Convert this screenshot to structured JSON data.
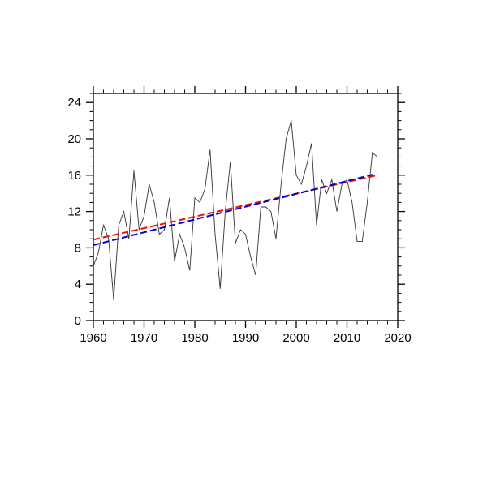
{
  "page": {
    "background": "#ffffff"
  },
  "chart_data": {
    "type": "line",
    "title": "",
    "xlabel": "",
    "ylabel": "",
    "xlim": [
      1960,
      2020
    ],
    "ylim": [
      0,
      25
    ],
    "grid": false,
    "legend": "none",
    "xticks_major": [
      1960,
      1970,
      1980,
      1990,
      2000,
      2010,
      2020
    ],
    "xtick_labels": [
      "1960",
      "1970",
      "1980",
      "1990",
      "2000",
      "2010",
      "2020"
    ],
    "yticks_major": [
      0,
      4,
      8,
      12,
      16,
      20,
      24
    ],
    "ytick_labels": [
      "0",
      "4",
      "8",
      "12",
      "16",
      "20",
      "24"
    ],
    "xtick_minor_step": 2,
    "ytick_minor_step": 1,
    "x": [
      1960,
      1961,
      1962,
      1963,
      1964,
      1965,
      1966,
      1967,
      1968,
      1969,
      1970,
      1971,
      1972,
      1973,
      1974,
      1975,
      1976,
      1977,
      1978,
      1979,
      1980,
      1981,
      1982,
      1983,
      1984,
      1985,
      1986,
      1987,
      1988,
      1989,
      1990,
      1991,
      1992,
      1993,
      1994,
      1995,
      1996,
      1997,
      1998,
      1999,
      2000,
      2001,
      2002,
      2003,
      2004,
      2005,
      2006,
      2007,
      2008,
      2009,
      2010,
      2011,
      2012,
      2013,
      2014,
      2015,
      2016
    ],
    "series": [
      {
        "name": "annual-values",
        "color": "#333333",
        "style": "solid",
        "width": 0.9,
        "values": [
          6.0,
          7.5,
          10.5,
          9.0,
          2.3,
          10.5,
          12.0,
          9.0,
          16.5,
          10.0,
          11.5,
          15.0,
          13.0,
          9.5,
          10.0,
          13.5,
          6.5,
          9.5,
          8.0,
          5.5,
          13.5,
          13.0,
          14.5,
          18.8,
          9.5,
          3.5,
          12.0,
          17.5,
          8.5,
          10.0,
          9.5,
          7.0,
          5.0,
          12.5,
          12.5,
          12.0,
          9.0,
          15.0,
          20.0,
          22.0,
          16.0,
          15.0,
          17.0,
          19.5,
          10.5,
          15.5,
          14.0,
          15.5,
          12.0,
          15.0,
          15.5,
          13.0,
          8.7,
          8.7,
          13.0,
          18.5,
          18.0
        ]
      },
      {
        "name": "trend-red",
        "color": "#ee1100",
        "style": "dashed",
        "width": 2,
        "x": [
          1960,
          2016
        ],
        "values": [
          8.9,
          16.0
        ]
      },
      {
        "name": "trend-blue",
        "color": "#0000cc",
        "style": "dashed",
        "width": 2,
        "x": [
          1960,
          2016
        ],
        "values": [
          8.3,
          16.2
        ]
      }
    ]
  }
}
